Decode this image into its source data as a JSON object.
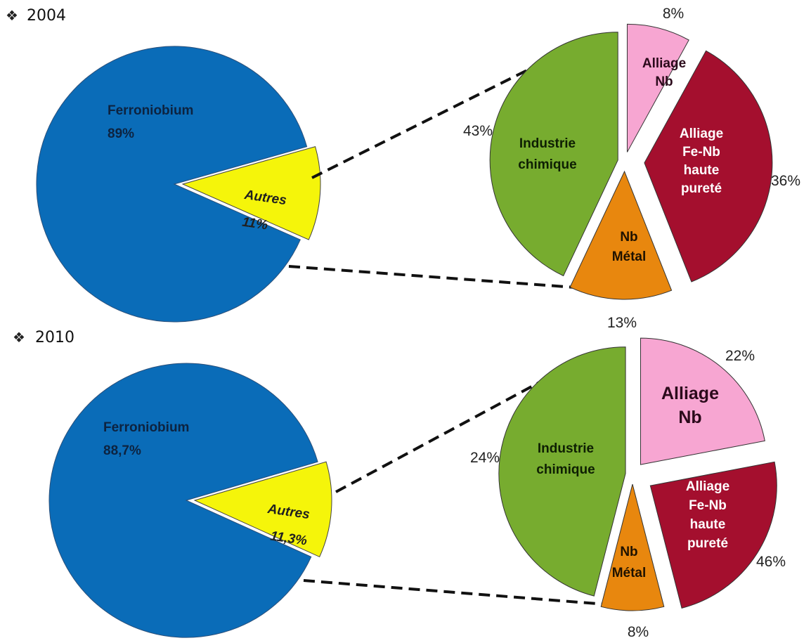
{
  "bullet_glyph": "❖",
  "chart_data": [
    {
      "type": "bar-of-pie",
      "year_label": "2004",
      "main_pie": [
        {
          "label": "Ferroniobium",
          "value_text": "89%",
          "value": 89,
          "color": "#0a6cb8"
        },
        {
          "label": "Autres",
          "value_text": "11%",
          "value": 11,
          "color": "#f5f50a"
        }
      ],
      "secondary_pie": [
        {
          "label": [
            "Alliage",
            "Nb"
          ],
          "value_text": "8%",
          "value": 8,
          "color": "#f7a6d2"
        },
        {
          "label": [
            "Alliage",
            "Fe-Nb",
            "haute",
            "pureté"
          ],
          "value_text": "36%",
          "value": 36,
          "color": "#a40f2e"
        },
        {
          "label": [
            "Nb",
            "Métal"
          ],
          "value_text": "13%",
          "value": 13,
          "color": "#e8870e"
        },
        {
          "label": [
            "Industrie",
            "chimique"
          ],
          "value_text": "43%",
          "value": 43,
          "color": "#77ac2f"
        }
      ]
    },
    {
      "type": "bar-of-pie",
      "year_label": "2010",
      "main_pie": [
        {
          "label": "Ferroniobium",
          "value_text": "88,7%",
          "value": 88.7,
          "color": "#0a6cb8"
        },
        {
          "label": "Autres",
          "value_text": "11,3%",
          "value": 11.3,
          "color": "#f5f50a"
        }
      ],
      "secondary_pie": [
        {
          "label": [
            "Alliage",
            "Nb"
          ],
          "value_text": "22%",
          "value": 22,
          "color": "#f7a6d2"
        },
        {
          "label": [
            "Alliage",
            "Fe-Nb",
            "haute",
            "pureté"
          ],
          "value_text": "24%",
          "value": 24,
          "color": "#a40f2e"
        },
        {
          "label": [
            "Nb",
            "Métal"
          ],
          "value_text": "8%",
          "value": 8,
          "color": "#e8870e"
        },
        {
          "label": [
            "Industrie",
            "chimique"
          ],
          "value_text": "46%",
          "value": 46,
          "color": "#77ac2f"
        }
      ]
    }
  ]
}
